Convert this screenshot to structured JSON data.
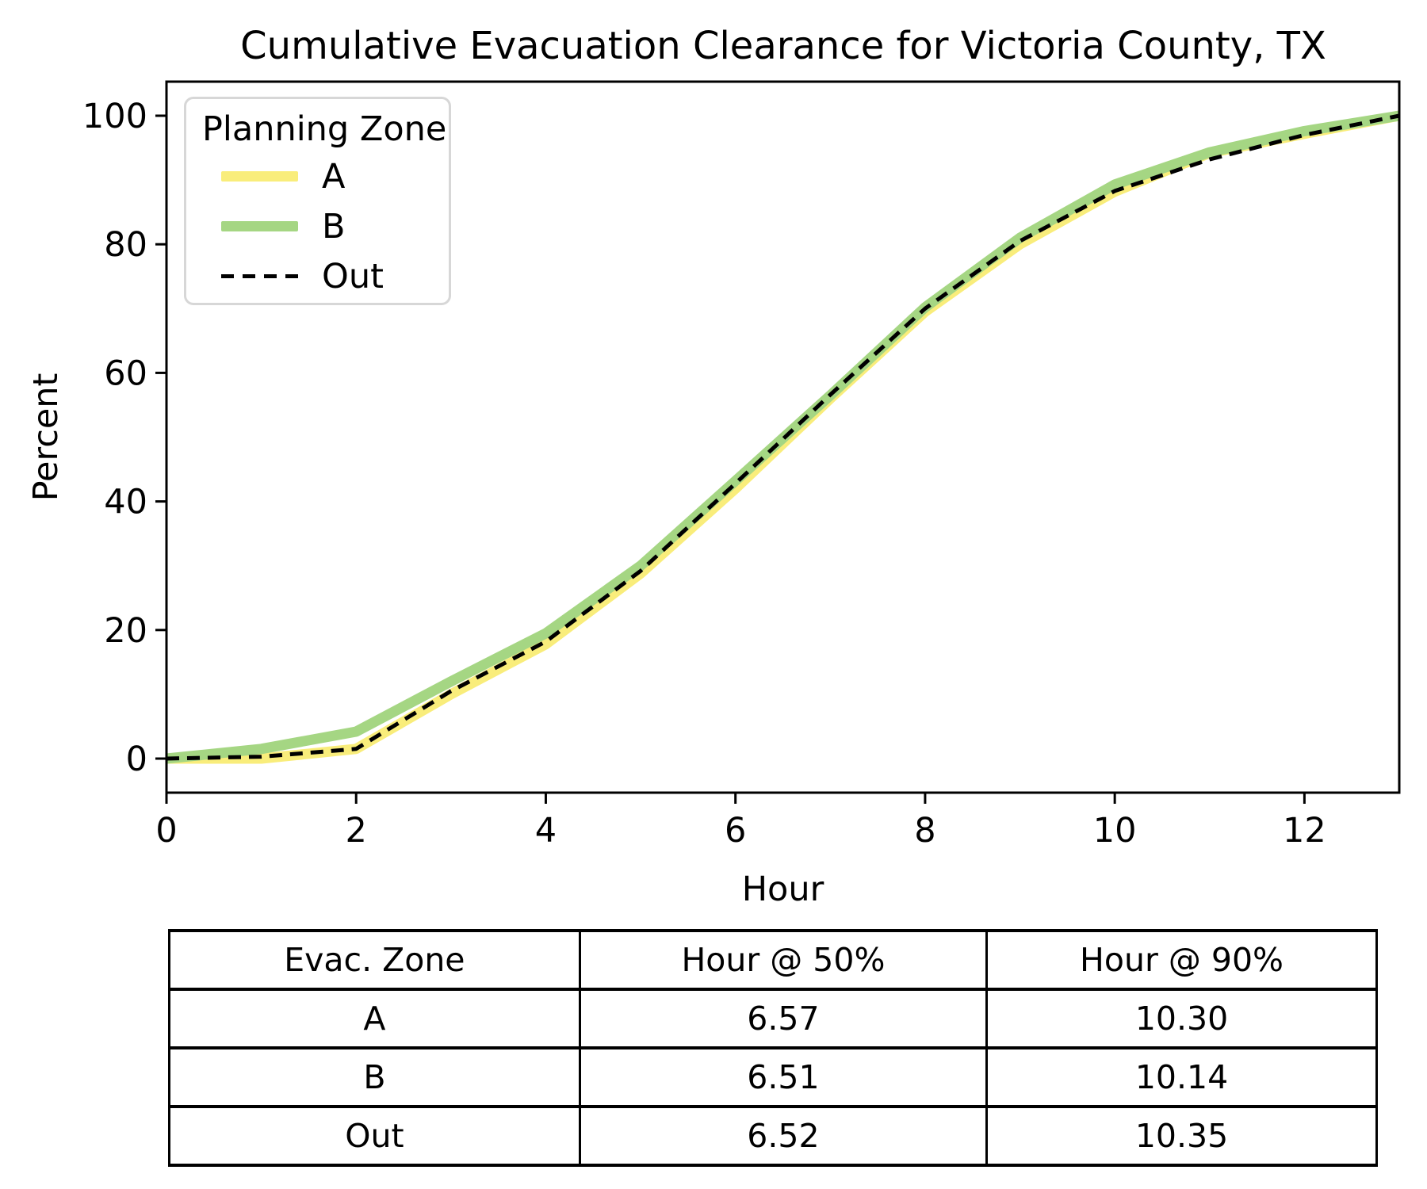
{
  "title": "Cumulative Evacuation Clearance for Victoria County, TX",
  "legend": {
    "title": "Planning Zone",
    "entries": [
      {
        "label": "A",
        "style": "solid",
        "color": "#f9ed7b"
      },
      {
        "label": "B",
        "style": "solid",
        "color": "#a5d683"
      },
      {
        "label": "Out",
        "style": "dashed",
        "color": "#000000"
      }
    ]
  },
  "chart_data": {
    "type": "line",
    "title": "Cumulative Evacuation Clearance for Victoria County, TX",
    "xlabel": "Hour",
    "ylabel": "Percent",
    "x": [
      0,
      1,
      2,
      3,
      4,
      5,
      6,
      7,
      8,
      9,
      10,
      11,
      12,
      13
    ],
    "series": [
      {
        "name": "A",
        "color": "#f9ed7b",
        "width": 13,
        "dash": null,
        "values": [
          0,
          0.0,
          1.5,
          10.0,
          17.8,
          28.8,
          42.0,
          56.0,
          69.5,
          80.0,
          88.2,
          94.2,
          97.2,
          100
        ]
      },
      {
        "name": "B",
        "color": "#a5d683",
        "width": 13,
        "dash": null,
        "values": [
          0,
          1.5,
          4.2,
          12.0,
          19.5,
          30.0,
          43.2,
          56.5,
          70.2,
          81.0,
          89.3,
          94.3,
          97.6,
          100
        ]
      },
      {
        "name": "Out",
        "color": "#000000",
        "width": 5,
        "dash": "16 10",
        "values": [
          0,
          0.3,
          1.5,
          10.5,
          18.2,
          29.2,
          42.8,
          56.6,
          70.0,
          80.5,
          88.3,
          93.2,
          97.0,
          100
        ]
      }
    ],
    "xlim": [
      0,
      13
    ],
    "ylim": [
      -5.3,
      105.3
    ],
    "xticks": [
      0,
      2,
      4,
      6,
      8,
      10,
      12
    ],
    "yticks": [
      0,
      20,
      40,
      60,
      80,
      100
    ],
    "grid": false,
    "legend_position": "upper left"
  },
  "table": {
    "headers": [
      "Evac. Zone",
      "Hour @ 50%",
      "Hour @ 90%"
    ],
    "rows": [
      [
        "A",
        "6.57",
        "10.30"
      ],
      [
        "B",
        "6.51",
        "10.14"
      ],
      [
        "Out",
        "6.52",
        "10.35"
      ]
    ]
  }
}
